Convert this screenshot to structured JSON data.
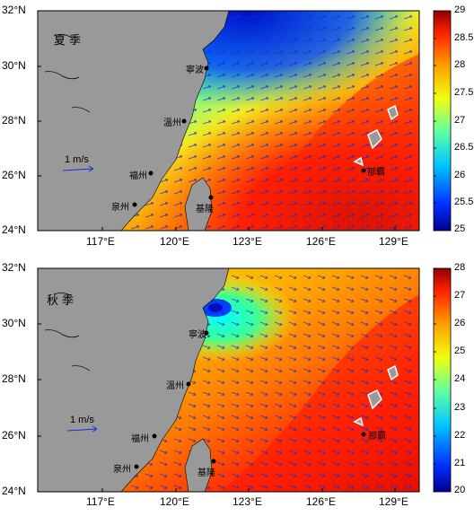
{
  "panels": [
    {
      "season": "夏季",
      "cb_ticks": [
        "29",
        "28.5",
        "28",
        "27.5",
        "27",
        "26.5",
        "26",
        "25.5",
        "25"
      ],
      "y_labels": [
        "32°N",
        "30°N",
        "28°N",
        "26°N",
        "24°N"
      ],
      "x_labels": [
        "117°E",
        "120°E",
        "123°E",
        "126°E",
        "129°E"
      ],
      "scale_label": "1 m/s",
      "cities": [
        "寧波",
        "溫州",
        "福州",
        "泉州",
        "基隆",
        "那霸"
      ]
    },
    {
      "season": "秋季",
      "cb_ticks": [
        "28",
        "27",
        "26",
        "25",
        "24",
        "23",
        "22",
        "21",
        "20"
      ],
      "y_labels": [
        "32°N",
        "30°N",
        "28°N",
        "26°N",
        "24°N"
      ],
      "x_labels": [
        "117°E",
        "120°E",
        "123°E",
        "126°E",
        "129°E"
      ],
      "scale_label": "1 m/s",
      "cities": [
        "寧波",
        "溫州",
        "福州",
        "泉州",
        "基隆",
        "那霸"
      ]
    }
  ],
  "colors": {
    "land": "#999999",
    "vector": "#1a2bd6",
    "ink": "#000000"
  }
}
